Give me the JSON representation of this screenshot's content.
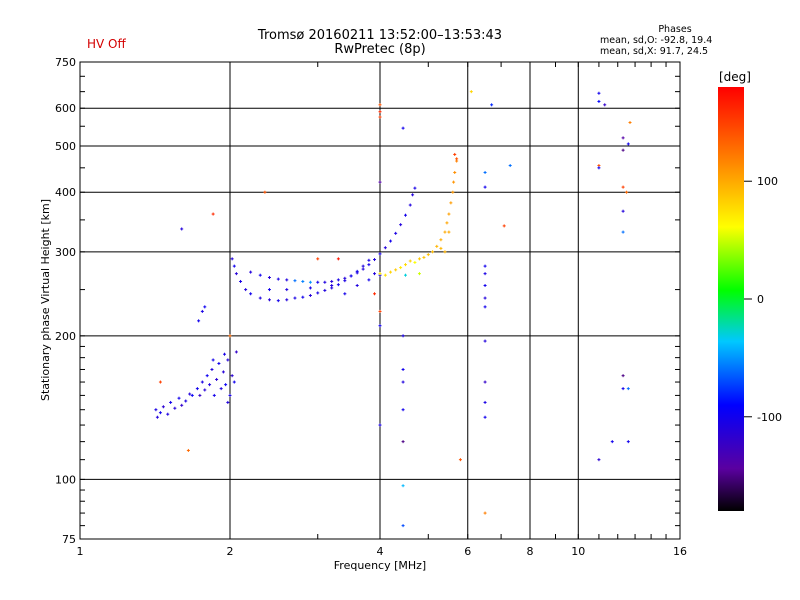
{
  "header": {
    "status": "HV Off",
    "title": "Tromsø 20160211 13:52:00–13:53:43",
    "subtitle": "RwPretec (8p)",
    "phases_heading": "Phases",
    "phases_o": "mean, sd,O: -92.8, 19.4",
    "phases_x": "mean, sd,X:  91.7, 24.5"
  },
  "colorbar": {
    "label": "[deg]",
    "ticks": [
      "100",
      "0",
      "-100"
    ],
    "tick_values": [
      100,
      0,
      -100
    ],
    "range": [
      -180,
      180
    ]
  },
  "chart_data": {
    "type": "scatter",
    "title": "Tromsø 20160211 13:52:00–13:53:43",
    "subtitle": "RwPretec (8p)",
    "xlabel": "Frequency [MHz]",
    "ylabel": "Stationary phase Virtual Height [km]",
    "x_scale": "log",
    "y_scale": "log",
    "xlim": [
      1,
      16
    ],
    "ylim": [
      75,
      750
    ],
    "x_ticks": [
      1,
      2,
      4,
      6,
      8,
      10,
      16
    ],
    "x_tick_labels": [
      "1",
      "2",
      "4",
      "6",
      "8",
      "10",
      "16"
    ],
    "y_ticks": [
      75,
      100,
      200,
      300,
      400,
      500,
      600,
      750
    ],
    "y_tick_labels": [
      "75",
      "100",
      "200",
      "300",
      "400",
      "500",
      "600",
      "750"
    ],
    "grid": true,
    "color_scale": "phase [deg], -180 to 180",
    "series": [
      {
        "points": [
          [
            1.42,
            140,
            -105
          ],
          [
            1.43,
            135,
            -110
          ],
          [
            1.45,
            138,
            -100
          ],
          [
            1.47,
            142,
            -115
          ],
          [
            1.5,
            137,
            -108
          ],
          [
            1.52,
            145,
            -102
          ],
          [
            1.55,
            141,
            -112
          ],
          [
            1.58,
            148,
            -100
          ],
          [
            1.6,
            143,
            -118
          ],
          [
            1.63,
            146,
            -106
          ],
          [
            1.66,
            151,
            -110
          ],
          [
            1.68,
            150,
            -95
          ],
          [
            1.72,
            155,
            -100
          ],
          [
            1.74,
            150,
            -120
          ],
          [
            1.76,
            160,
            -105
          ],
          [
            1.78,
            154,
            -112
          ],
          [
            1.8,
            165,
            -98
          ],
          [
            1.82,
            158,
            -108
          ],
          [
            1.84,
            170,
            -110
          ],
          [
            1.86,
            150,
            -102
          ],
          [
            1.88,
            162,
            -115
          ],
          [
            1.9,
            175,
            -100
          ],
          [
            1.92,
            155,
            -108
          ],
          [
            1.94,
            168,
            -112
          ],
          [
            1.96,
            158,
            -96
          ],
          [
            1.98,
            178,
            -110
          ],
          [
            2.0,
            150,
            -104
          ],
          [
            2.02,
            165,
            -115
          ],
          [
            2.04,
            160,
            -100
          ],
          [
            2.06,
            185,
            -120
          ],
          [
            1.95,
            183,
            -105
          ],
          [
            1.98,
            145,
            -110
          ],
          [
            1.85,
            178,
            -102
          ],
          [
            1.73,
            215,
            -100
          ],
          [
            1.76,
            225,
            -105
          ],
          [
            1.78,
            230,
            -98
          ],
          [
            2.02,
            290,
            -110
          ],
          [
            2.04,
            280,
            -100
          ],
          [
            2.06,
            270,
            -112
          ],
          [
            2.1,
            260,
            -105
          ],
          [
            2.15,
            250,
            -110
          ],
          [
            2.2,
            245,
            -100
          ],
          [
            2.3,
            240,
            -108
          ],
          [
            2.4,
            238,
            -112
          ],
          [
            2.5,
            237,
            -102
          ],
          [
            2.6,
            238,
            -110
          ],
          [
            2.7,
            240,
            -105
          ],
          [
            2.8,
            241,
            -100
          ],
          [
            2.9,
            243,
            -112
          ],
          [
            3.0,
            246,
            -104
          ],
          [
            3.1,
            249,
            -108
          ],
          [
            3.2,
            252,
            -110
          ],
          [
            3.3,
            256,
            -100
          ],
          [
            3.4,
            261,
            -106
          ],
          [
            3.5,
            267,
            -112
          ],
          [
            3.6,
            273,
            -100
          ],
          [
            3.7,
            280,
            -108
          ],
          [
            3.8,
            288,
            -104
          ],
          [
            2.2,
            272,
            -110
          ],
          [
            2.3,
            268,
            -100
          ],
          [
            2.4,
            265,
            -112
          ],
          [
            2.5,
            263,
            -105
          ],
          [
            2.6,
            262,
            -108
          ],
          [
            2.7,
            261,
            -60
          ],
          [
            2.8,
            260,
            -55
          ],
          [
            2.9,
            259,
            -50
          ],
          [
            3.0,
            259,
            -100
          ],
          [
            3.1,
            259,
            -108
          ],
          [
            3.2,
            260,
            -112
          ],
          [
            3.3,
            262,
            -104
          ],
          [
            3.4,
            264,
            -110
          ],
          [
            3.5,
            267,
            -100
          ],
          [
            3.6,
            271,
            -106
          ],
          [
            3.7,
            276,
            -110
          ],
          [
            3.8,
            282,
            -102
          ],
          [
            3.9,
            289,
            -108
          ],
          [
            4.0,
            297,
            -104
          ],
          [
            4.1,
            306,
            -110
          ],
          [
            4.2,
            316,
            -100
          ],
          [
            4.3,
            328,
            -106
          ],
          [
            4.4,
            342,
            -110
          ],
          [
            4.5,
            358,
            -102
          ],
          [
            4.6,
            376,
            -108
          ],
          [
            4.65,
            395,
            -110
          ],
          [
            4.7,
            408,
            -104
          ],
          [
            2.4,
            250,
            -100
          ],
          [
            2.6,
            250,
            -108
          ],
          [
            2.9,
            252,
            -105
          ],
          [
            3.2,
            255,
            -110
          ],
          [
            3.4,
            245,
            -102
          ],
          [
            3.6,
            255,
            -108
          ],
          [
            3.8,
            262,
            -100
          ],
          [
            3.9,
            270,
            -110
          ],
          [
            4.0,
            268,
            -104
          ],
          [
            4.0,
            270,
            70
          ],
          [
            4.1,
            268,
            75
          ],
          [
            4.2,
            272,
            80
          ],
          [
            4.3,
            275,
            85
          ],
          [
            4.4,
            278,
            70
          ],
          [
            4.5,
            282,
            78
          ],
          [
            4.6,
            287,
            82
          ],
          [
            4.7,
            285,
            60
          ],
          [
            4.8,
            290,
            85
          ],
          [
            4.9,
            292,
            88
          ],
          [
            5.0,
            296,
            90
          ],
          [
            5.1,
            300,
            92
          ],
          [
            5.2,
            308,
            95
          ],
          [
            5.3,
            318,
            98
          ],
          [
            5.4,
            330,
            100
          ],
          [
            5.45,
            345,
            102
          ],
          [
            5.5,
            360,
            104
          ],
          [
            5.55,
            380,
            106
          ],
          [
            5.6,
            400,
            108
          ],
          [
            5.62,
            420,
            110
          ],
          [
            5.65,
            440,
            112
          ],
          [
            5.7,
            465,
            118
          ],
          [
            5.4,
            300,
            96
          ],
          [
            5.3,
            305,
            94
          ],
          [
            5.5,
            330,
            100
          ],
          [
            5.7,
            470,
            140
          ],
          [
            5.65,
            480,
            150
          ],
          [
            4.8,
            270,
            50
          ],
          [
            4.5,
            268,
            -30
          ],
          [
            4.0,
            610,
            140
          ],
          [
            4.0,
            575,
            150
          ],
          [
            4.0,
            590,
            160
          ],
          [
            4.0,
            420,
            -140
          ],
          [
            4.0,
            130,
            -105
          ],
          [
            4.0,
            210,
            -100
          ],
          [
            4.0,
            225,
            150
          ],
          [
            4.45,
            545,
            -100
          ],
          [
            4.45,
            200,
            -105
          ],
          [
            4.45,
            170,
            -100
          ],
          [
            4.45,
            160,
            -108
          ],
          [
            4.45,
            140,
            -100
          ],
          [
            4.45,
            120,
            -150
          ],
          [
            4.45,
            97,
            -40
          ],
          [
            4.45,
            80,
            -70
          ],
          [
            5.8,
            110,
            140
          ],
          [
            6.1,
            650,
            80
          ],
          [
            6.5,
            280,
            -100
          ],
          [
            6.5,
            270,
            -105
          ],
          [
            6.5,
            255,
            -100
          ],
          [
            6.5,
            240,
            -110
          ],
          [
            6.5,
            230,
            -100
          ],
          [
            6.5,
            195,
            -110
          ],
          [
            6.5,
            160,
            -120
          ],
          [
            6.5,
            145,
            -105
          ],
          [
            6.5,
            135,
            -100
          ],
          [
            6.5,
            85,
            120
          ],
          [
            6.5,
            440,
            -60
          ],
          [
            6.5,
            410,
            -100
          ],
          [
            6.7,
            610,
            -80
          ],
          [
            7.1,
            340,
            150
          ],
          [
            7.3,
            455,
            -60
          ],
          [
            11.0,
            645,
            -100
          ],
          [
            11.0,
            620,
            -90
          ],
          [
            11.0,
            455,
            140
          ],
          [
            11.0,
            450,
            -100
          ],
          [
            11.0,
            110,
            -115
          ],
          [
            11.3,
            610,
            -120
          ],
          [
            11.7,
            120,
            -100
          ],
          [
            12.3,
            520,
            -140
          ],
          [
            12.3,
            490,
            -150
          ],
          [
            12.3,
            365,
            -110
          ],
          [
            12.3,
            330,
            -60
          ],
          [
            12.3,
            410,
            150
          ],
          [
            12.3,
            165,
            -150
          ],
          [
            12.3,
            155,
            -100
          ],
          [
            12.6,
            505,
            -100
          ],
          [
            12.6,
            155,
            -60
          ],
          [
            12.6,
            120,
            -100
          ],
          [
            12.7,
            560,
            120
          ],
          [
            12.5,
            400,
            130
          ],
          [
            1.85,
            360,
            160
          ],
          [
            1.6,
            335,
            -110
          ],
          [
            1.65,
            115,
            130
          ],
          [
            1.45,
            160,
            150
          ],
          [
            2.0,
            200,
            130
          ],
          [
            2.35,
            400,
            140
          ],
          [
            3.0,
            290,
            150
          ],
          [
            3.3,
            290,
            170
          ],
          [
            3.9,
            245,
            160
          ]
        ]
      }
    ]
  }
}
